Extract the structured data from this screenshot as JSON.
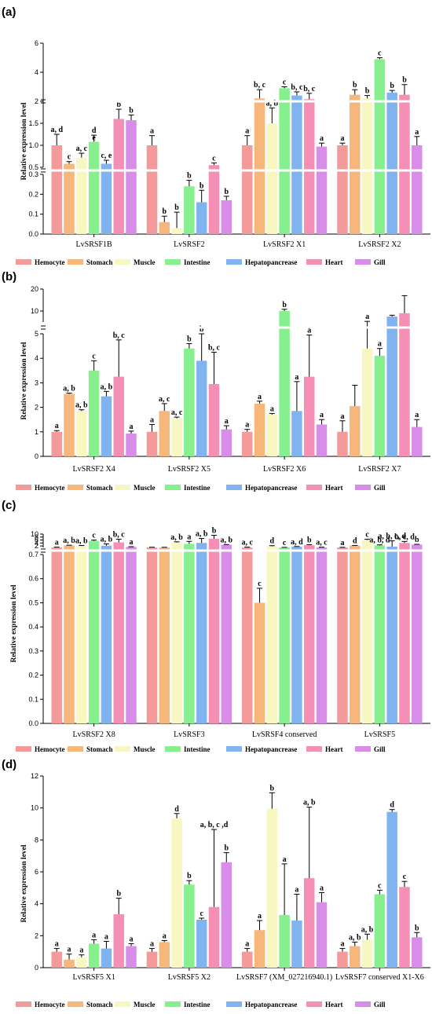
{
  "colors": {
    "Hemocyte": "#f59a9a",
    "Stomach": "#f7b77a",
    "Muscle": "#f8f7c2",
    "Intestine": "#86f08f",
    "Hepatopancrease": "#7fb4f0",
    "Heart": "#f58fb6",
    "Gill": "#d88ee8"
  },
  "chart_data": [
    {
      "panel": "(a)",
      "type": "bar",
      "ylabel": "Relative expression level",
      "categories": [
        "LvSRSF1B",
        "LvSRSF2",
        "LvSRSF2 X1",
        "LvSRSF2 X2"
      ],
      "legend": [
        "Hemocyte",
        "Stomach",
        "Muscle",
        "Intestine",
        "Hepatopancrease",
        "Heart",
        "Gill"
      ],
      "axis_segments": [
        {
          "range": [
            0,
            0.3
          ],
          "ticks": [
            "0.0",
            "0.1",
            "0.2",
            "0.3"
          ]
        },
        {
          "range": [
            0.5,
            2
          ],
          "ticks": [
            "0.5",
            "1.0",
            "1.5",
            "2"
          ]
        },
        {
          "range": [
            2,
            6
          ],
          "ticks": [
            "4",
            "6"
          ]
        }
      ],
      "values": [
        [
          1.0,
          0.58,
          0.72,
          1.08,
          0.58,
          1.6,
          1.57
        ],
        [
          1.0,
          0.06,
          0.03,
          0.24,
          0.16,
          0.55,
          0.17
        ],
        [
          1.0,
          2.2,
          1.5,
          2.9,
          2.4,
          2.15,
          0.97
        ],
        [
          1.0,
          2.45,
          2.2,
          4.9,
          2.6,
          2.45,
          1.0
        ]
      ],
      "errors": [
        [
          0.25,
          0.05,
          0.1,
          0.15,
          0.08,
          0.22,
          0.12
        ],
        [
          0.22,
          0.03,
          0.08,
          0.03,
          0.06,
          0.05,
          0.02
        ],
        [
          0.22,
          0.6,
          0.35,
          0.1,
          0.25,
          0.4,
          0.08
        ],
        [
          0.05,
          0.35,
          0.2,
          0.1,
          0.15,
          0.7,
          0.2
        ]
      ],
      "letters": [
        [
          "a, d",
          "c",
          "a, c",
          "d",
          "c, e",
          "b",
          "b"
        ],
        [
          "a",
          "b",
          "b",
          "b",
          "b",
          "c",
          "b"
        ],
        [
          "a",
          "b, c",
          "a, b",
          "c",
          "b, c",
          "b, c",
          "a"
        ],
        [
          "a",
          "b",
          "b",
          "c",
          "b",
          "b",
          "a"
        ]
      ],
      "extra_letters": [
        {
          "category": 0,
          "series": 3,
          "text": "e"
        }
      ]
    },
    {
      "panel": "(b)",
      "type": "bar",
      "ylabel": "Relative expression level",
      "categories": [
        "LvSRSF2 X4",
        "LvSRSF2 X5",
        "LvSRSF2 X6",
        "LvSRSF2 X7"
      ],
      "legend": [
        "Hemocyte",
        "Stomach",
        "Muscle",
        "Intestine",
        "Hepatopancrease",
        "Heart",
        "Gill"
      ],
      "axis_segments": [
        {
          "range": [
            0,
            5
          ],
          "ticks": [
            "0",
            "1",
            "2",
            "3",
            "4",
            "5"
          ]
        },
        {
          "range": [
            5,
            20
          ],
          "ticks": [
            "10",
            "20"
          ]
        }
      ],
      "values": [
        [
          1.0,
          2.55,
          1.85,
          3.5,
          2.45,
          3.25,
          0.93
        ],
        [
          1.0,
          1.85,
          1.55,
          4.4,
          3.9,
          2.95,
          1.1
        ],
        [
          1.0,
          2.15,
          1.7,
          10.0,
          1.85,
          3.25,
          1.3
        ],
        [
          1.0,
          2.05,
          4.4,
          4.1,
          7.5,
          9.0,
          1.2
        ]
      ],
      "errors": [
        [
          0.05,
          0.03,
          0.05,
          0.4,
          0.2,
          1.5,
          0.1
        ],
        [
          0.3,
          0.3,
          0.05,
          0.2,
          1.1,
          1.3,
          0.15
        ],
        [
          0.1,
          0.1,
          0.05,
          0.8,
          1.2,
          1.7,
          0.2
        ],
        [
          0.45,
          0.85,
          0.9,
          0.3,
          0.6,
          8.0,
          0.3
        ]
      ],
      "letters": [
        [
          "a",
          "a, b",
          "a, b",
          "c",
          "a, b",
          "b, c",
          "a"
        ],
        [
          "a",
          "a, c",
          "a, c",
          "b",
          "b",
          "b, c",
          "a"
        ],
        [
          "a",
          "a",
          "a",
          "b",
          "a",
          "a",
          "a"
        ],
        [
          "a",
          "",
          "a",
          "a",
          "",
          "",
          "a"
        ]
      ],
      "extra_letters": []
    },
    {
      "panel": "(c)",
      "type": "bar",
      "ylabel": "Relative expression level",
      "categories": [
        "LvSRSF2 X8",
        "LvSRSF3",
        "LvSRSF4 conserved",
        "LvSRSF5"
      ],
      "legend": [
        "Hemocyte",
        "Stomach",
        "Muscle",
        "Intestine",
        "Hepatopancrease",
        "Heart",
        "Gill"
      ],
      "axis_segments": [
        {
          "range": [
            0,
            0.7
          ],
          "ticks": [
            "0.0",
            "0.1",
            "0.2",
            "0.3",
            "0.4",
            "0.5",
            "0.6",
            "0.7"
          ]
        },
        {
          "range": [
            1,
            10
          ],
          "ticks": [
            "2",
            "4",
            "6",
            "8",
            "10"
          ]
        }
      ],
      "values": [
        [
          1.0,
          2.4,
          2.0,
          5.45,
          2.2,
          4.45,
          1.35
        ],
        [
          1.0,
          1.0,
          4.3,
          3.4,
          4.05,
          6.8,
          2.8
        ],
        [
          1.0,
          0.5,
          1.8,
          1.0,
          1.5,
          2.5,
          1.0
        ],
        [
          1.0,
          2.25,
          6.0,
          2.35,
          1.55,
          4.05,
          2.95
        ]
      ],
      "errors": [
        [
          0.2,
          0.1,
          0.3,
          0.5,
          1.2,
          2.1,
          0.15
        ],
        [
          0.15,
          0.1,
          0.5,
          1.7,
          3.0,
          2.4,
          0.15
        ],
        [
          0.2,
          0.06,
          0.4,
          0.05,
          0.15,
          0.4,
          0.2
        ],
        [
          0.1,
          0.1,
          0.5,
          0.4,
          3.9,
          1.0,
          0.15
        ]
      ],
      "letters": [
        [
          "a",
          "a, b",
          "a, b",
          "c",
          "a, b",
          "b, c",
          "a"
        ],
        [
          "",
          "",
          "a, b",
          "a",
          "a, b",
          "b",
          "a, b"
        ],
        [
          "a, c",
          "c",
          "d",
          "c",
          "a, d",
          "b",
          "a, c"
        ],
        [
          "a",
          "d",
          "c",
          "a, b, d",
          "a, b, c, d",
          "b, c, d",
          "b"
        ]
      ],
      "extra_letters": []
    },
    {
      "panel": "(d)",
      "type": "bar",
      "ylabel": "Relative expression level",
      "ylim": [
        0,
        12
      ],
      "yticks": [
        "0",
        "2",
        "4",
        "6",
        "8",
        "10",
        "12"
      ],
      "categories": [
        "LvSRSF5 X1",
        "LvSRSF5 X2",
        "LvSRSF7 (XM_027216940.1)",
        "LvSRSF7 conserved X1-X6"
      ],
      "legend": [
        "Hemocyte",
        "Stomach",
        "Muscle",
        "Intestine",
        "Hepatopancrease",
        "Heart",
        "Gill"
      ],
      "values": [
        [
          1.0,
          0.5,
          0.65,
          1.5,
          1.2,
          3.35,
          1.35
        ],
        [
          1.0,
          1.6,
          9.35,
          5.2,
          3.0,
          3.8,
          6.6
        ],
        [
          1.0,
          2.35,
          9.95,
          3.3,
          2.95,
          5.6,
          4.1
        ],
        [
          1.0,
          1.35,
          1.75,
          4.6,
          9.75,
          5.05,
          1.9
        ]
      ],
      "errors": [
        [
          0.2,
          0.35,
          0.15,
          0.25,
          0.45,
          1.0,
          0.15
        ],
        [
          0.2,
          0.1,
          0.3,
          0.25,
          0.1,
          4.85,
          0.6
        ],
        [
          0.2,
          0.6,
          1.0,
          3.2,
          1.65,
          4.45,
          0.6
        ],
        [
          0.2,
          0.25,
          0.35,
          0.25,
          0.15,
          0.35,
          0.3
        ]
      ],
      "letters": [
        [
          "a",
          "a",
          "a",
          "a",
          "a",
          "b",
          "a"
        ],
        [
          "a",
          "a",
          "d",
          "b",
          "c",
          "a, b, c ,d",
          "b"
        ],
        [
          "a",
          "a",
          "b",
          "a",
          "a",
          "a, b",
          "a"
        ],
        [
          "a",
          "a, b",
          "a, b",
          "c",
          "d",
          "c",
          "b"
        ]
      ],
      "extra_letters": []
    }
  ]
}
